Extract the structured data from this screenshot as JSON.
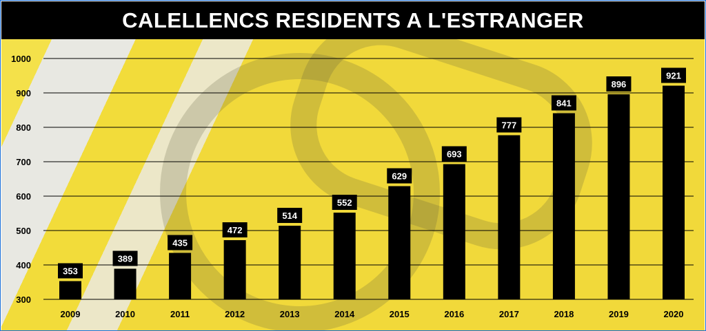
{
  "chart_data": {
    "type": "bar",
    "title": "CALELLENCS RESIDENTS A L'ESTRANGER",
    "categories": [
      "2009",
      "2010",
      "2011",
      "2012",
      "2013",
      "2014",
      "2015",
      "2016",
      "2017",
      "2018",
      "2019",
      "2020"
    ],
    "values": [
      353,
      389,
      435,
      472,
      514,
      552,
      629,
      693,
      777,
      841,
      896,
      921
    ],
    "ylim": [
      300,
      1000
    ],
    "yticks": [
      300,
      400,
      500,
      600,
      700,
      800,
      900,
      1000
    ],
    "grid": true,
    "colors": {
      "bar": "#000000",
      "label_text": "#ffffff",
      "title_bg": "#000000",
      "accent": "#f2dc3a"
    }
  }
}
